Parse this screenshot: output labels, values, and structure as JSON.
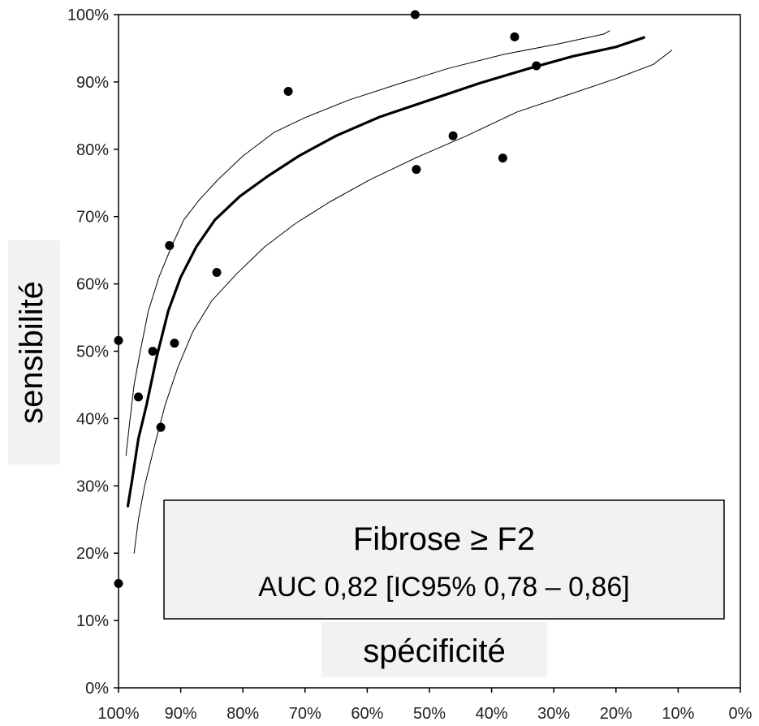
{
  "chart_data": {
    "type": "scatter",
    "xlabel": "spécificité",
    "ylabel": "sensibilité",
    "annotation": {
      "title": "Fibrose ≥ F2",
      "subtitle": "AUC 0,82 [IC95% 0,78 – 0,86]"
    },
    "xlim": [
      100,
      0
    ],
    "ylim": [
      0,
      100
    ],
    "x_ticks": [
      "100%",
      "90%",
      "80%",
      "70%",
      "60%",
      "50%",
      "40%",
      "30%",
      "20%",
      "10%",
      "0%"
    ],
    "y_ticks": [
      "0%",
      "10%",
      "20%",
      "30%",
      "40%",
      "50%",
      "60%",
      "70%",
      "80%",
      "90%",
      "100%"
    ],
    "grid": false,
    "colors": {
      "points": "#000000",
      "curve": "#000000",
      "ci": "#000000",
      "axes": "#000000"
    },
    "series": [
      {
        "kind": "points",
        "x": [
          100,
          100,
          96.8,
          94.5,
          93.2,
          91.8,
          91,
          84.2,
          72.7,
          52.3,
          52.1,
          46.2,
          38.2,
          36.3,
          32.8
        ],
        "y": [
          15.5,
          51.6,
          43.2,
          50,
          38.7,
          65.7,
          51.2,
          61.7,
          88.6,
          100,
          77,
          82,
          78.7,
          96.7,
          92.4
        ]
      },
      {
        "kind": "curve",
        "x": [
          98.5,
          97.8,
          96.8,
          95.5,
          93.9,
          92,
          90,
          87.5,
          84.5,
          80.5,
          76,
          71,
          65,
          58,
          50,
          42,
          34,
          27,
          20,
          15.5
        ],
        "y": [
          27,
          31,
          37,
          42,
          49,
          56,
          61,
          65.5,
          69.5,
          73,
          76,
          79,
          82,
          84.8,
          87.3,
          89.8,
          92,
          93.8,
          95.2,
          96.6
        ]
      },
      {
        "kind": "ci_upper",
        "x": [
          98.8,
          98.2,
          97.5,
          96.5,
          95.2,
          93.5,
          91.5,
          89.5,
          87,
          84,
          80,
          75,
          70,
          63,
          55,
          47,
          38,
          29,
          22,
          21
        ],
        "y": [
          34.5,
          39.5,
          45,
          50,
          56,
          61,
          65.5,
          69.5,
          72.5,
          75.5,
          79,
          82.5,
          84.7,
          87.3,
          89.7,
          92,
          94.1,
          95.7,
          97.1,
          97.6
        ]
      },
      {
        "kind": "ci_lower",
        "x": [
          97.5,
          96.8,
          95.8,
          94.2,
          92.5,
          90.5,
          88,
          85,
          81,
          76.5,
          71.5,
          66,
          59.5,
          52,
          44,
          36,
          28,
          20,
          14,
          11
        ],
        "y": [
          20,
          25,
          30,
          36,
          42,
          47.5,
          53,
          57.5,
          61.5,
          65.5,
          69,
          72.2,
          75.5,
          78.8,
          82,
          85.5,
          88,
          90.5,
          92.6,
          94.7
        ]
      }
    ]
  }
}
